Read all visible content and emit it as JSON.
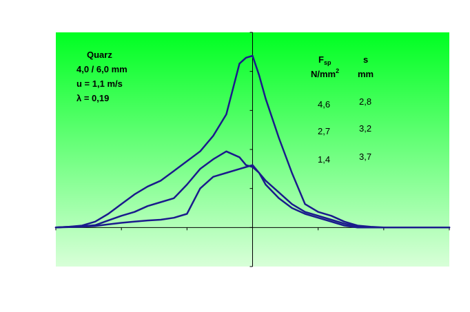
{
  "chart_data": {
    "type": "line",
    "x": [
      -30,
      -28,
      -26,
      -24,
      -22,
      -20,
      -18,
      -16,
      -14,
      -12,
      -10,
      -8,
      -6,
      -4,
      -2,
      -1,
      0,
      1,
      2,
      4,
      6,
      8,
      10,
      12,
      14,
      16,
      18,
      20,
      22,
      24,
      26,
      28,
      30
    ],
    "xlim": [
      -30,
      30
    ],
    "ylim": [
      -1,
      5
    ],
    "grid": false,
    "series": [
      {
        "color": "#1a1a8c",
        "values": [
          0.0,
          0.02,
          0.05,
          0.15,
          0.35,
          0.6,
          0.85,
          1.05,
          1.2,
          1.45,
          1.7,
          1.95,
          2.35,
          2.9,
          4.2,
          4.35,
          4.4,
          3.9,
          3.3,
          2.3,
          1.4,
          0.6,
          0.4,
          0.3,
          0.15,
          0.05,
          0.02,
          0.0,
          0.0,
          0.0,
          0.0,
          0.0,
          0.0
        ]
      },
      {
        "color": "#1a1a8c",
        "values": [
          0.0,
          0.02,
          0.03,
          0.06,
          0.18,
          0.3,
          0.4,
          0.55,
          0.65,
          0.75,
          1.1,
          1.5,
          1.75,
          1.95,
          1.8,
          1.6,
          1.55,
          1.4,
          1.2,
          0.9,
          0.6,
          0.4,
          0.3,
          0.2,
          0.1,
          0.02,
          0.0,
          0.0,
          0.0,
          0.0,
          0.0,
          0.0,
          0.0
        ]
      },
      {
        "color": "#1a1a8c",
        "values": [
          0.0,
          0.01,
          0.02,
          0.04,
          0.08,
          0.12,
          0.15,
          0.18,
          0.2,
          0.25,
          0.35,
          1.0,
          1.3,
          1.4,
          1.5,
          1.55,
          1.6,
          1.4,
          1.1,
          0.75,
          0.5,
          0.35,
          0.25,
          0.15,
          0.05,
          0.0,
          0.0,
          0.0,
          0.0,
          0.0,
          0.0,
          0.0,
          0.0
        ]
      }
    ]
  },
  "annotation": {
    "material": "Quarz",
    "size": "4,0 / 6,0 mm",
    "velocity": "u = 1,1 m/s",
    "lambda": "λ = 0,19"
  },
  "table": {
    "col1_header_main": "F",
    "col1_header_sub": "sp",
    "col1_unit_main": "N/mm",
    "col1_unit_sup": "2",
    "col2_header": "s",
    "col2_unit": "mm",
    "rows": [
      {
        "f": "4,6",
        "s": "2,8"
      },
      {
        "f": "2,7",
        "s": "3,2"
      },
      {
        "f": "1,4",
        "s": "3,7"
      }
    ]
  },
  "colors": {
    "plot_top": "#00ff22",
    "plot_bottom": "#d8ffd8",
    "line": "#1a1a8c",
    "axis": "#000000"
  }
}
